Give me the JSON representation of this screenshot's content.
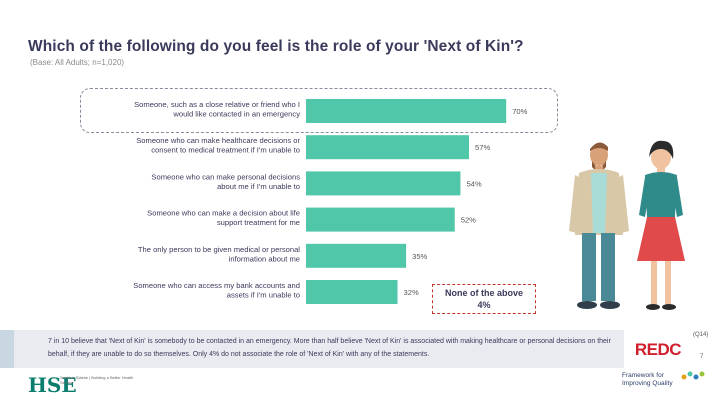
{
  "title": "Which of the following do you feel is the role of your 'Next of Kin'?",
  "subtitle": "(Base: All Adults; n=1,020)",
  "chart_data": {
    "type": "bar",
    "orientation": "horizontal",
    "categories": [
      "Someone, such as a close relative or friend who I would like contacted in an emergency",
      "Someone who can make healthcare decisions or consent to medical treatment if I'm unable to",
      "Someone who can make personal decisions about me if I'm unable to",
      "Someone who can make a decision about life support treatment for me",
      "The only person to be given medical or personal information about me",
      "Someone who can access my bank accounts and assets if I'm unable to"
    ],
    "category_lines": [
      [
        "Someone, such as a close relative or friend who I",
        "would like contacted in an emergency"
      ],
      [
        "Someone who can make healthcare decisions or",
        "consent to medical treatment if I'm unable to"
      ],
      [
        "Someone who can make personal decisions",
        "about me if I'm unable to"
      ],
      [
        "Someone who can make a decision about life",
        "support treatment for me"
      ],
      [
        "The only person to be given medical or personal",
        "information about me"
      ],
      [
        "Someone who can access my bank accounts and",
        "assets if I'm unable to"
      ]
    ],
    "values": [
      70,
      57,
      54,
      52,
      35,
      32
    ],
    "value_labels": [
      "70%",
      "57%",
      "54%",
      "52%",
      "35%",
      "32%"
    ],
    "xlim": [
      0,
      100
    ],
    "color": "#4fc7a8",
    "highlight_index": 0
  },
  "none_above": {
    "label": "None of the above",
    "value": "4%"
  },
  "summary": "7 in 10 believe that 'Next of Kin' is somebody to be contacted in an emergency. More than half believe 'Next of Kin' is associated with making healthcare or personal decisions on their behalf, if they are unable to do so themselves. Only 4% do not associate the role of 'Next of Kin' with any of the statements.",
  "brand": {
    "redc": "REDC",
    "base_tag": "(Q14)",
    "page": "7",
    "hse_mark": "HSE",
    "hse_text": "Seirbhís Sláinte | Building a Better Health Service",
    "fiq_line1": "Framework for",
    "fiq_line2": "Improving Quality"
  },
  "colors": {
    "bar": "#4fc7a8",
    "accent_red": "#d0202e",
    "title": "#3a3a5c"
  }
}
